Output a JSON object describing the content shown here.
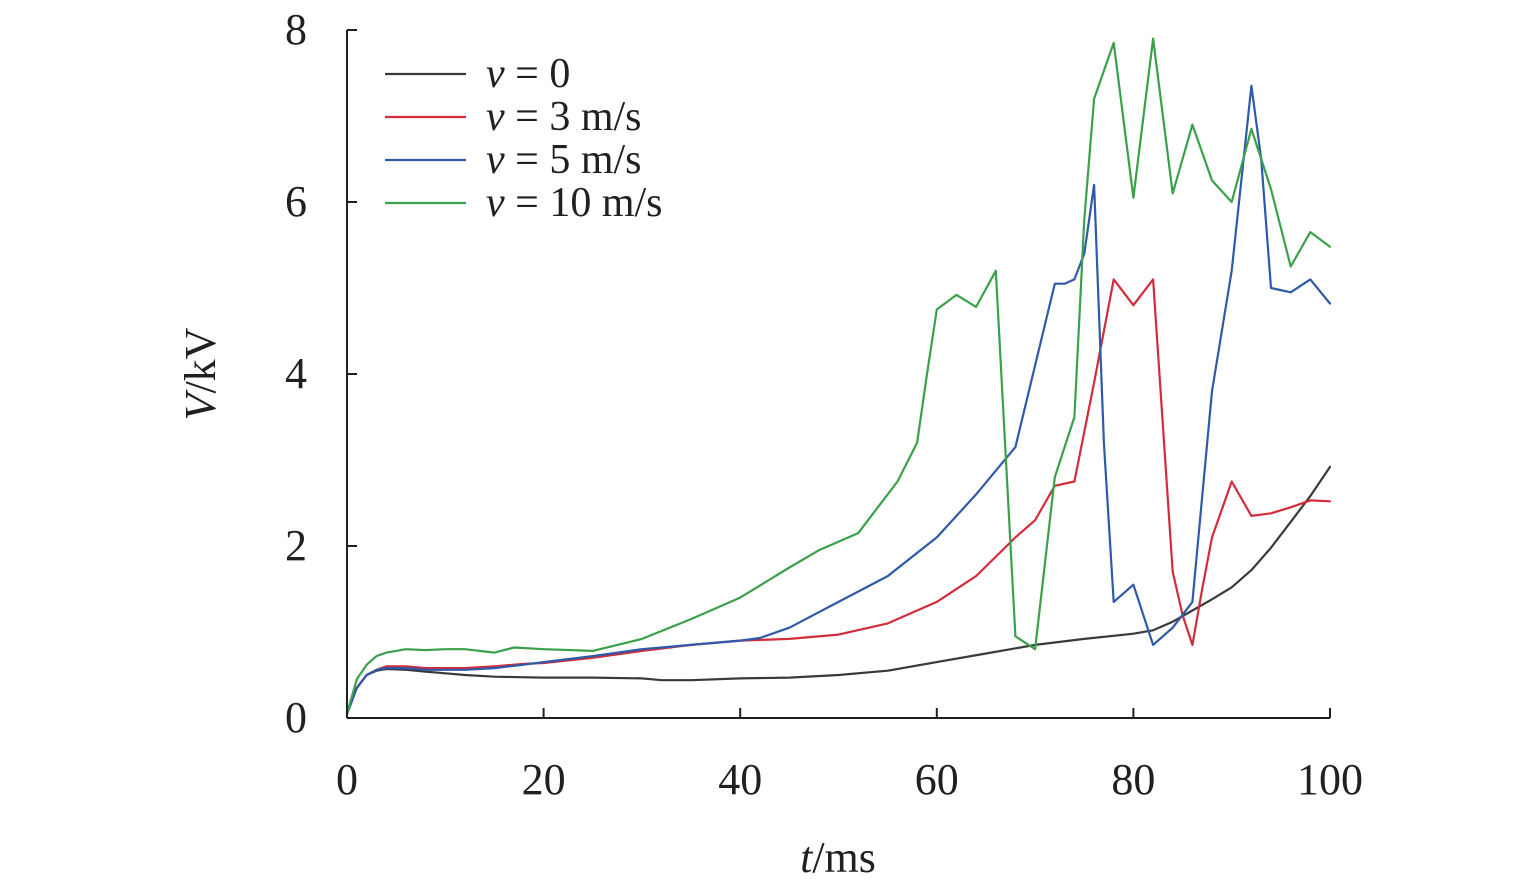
{
  "chart_data": {
    "type": "line",
    "title": "",
    "xlabel": {
      "var": "t",
      "unit": "/ms"
    },
    "ylabel": {
      "var": "V",
      "unit": "/kV"
    },
    "xlim": [
      0,
      100
    ],
    "ylim": [
      0,
      8
    ],
    "xticks": [
      "0",
      "20",
      "40",
      "60",
      "80",
      "100"
    ],
    "yticks": [
      "0",
      "2",
      "4",
      "6",
      "8"
    ],
    "grid": false,
    "legend_position": "top-left",
    "series": [
      {
        "name": "v = 0",
        "legend": {
          "var": "v",
          "rest": " = 0"
        },
        "color": "#3a3a3a",
        "x": [
          0,
          1,
          2,
          3,
          4,
          6,
          8,
          10,
          12,
          15,
          20,
          25,
          30,
          32,
          35,
          40,
          45,
          50,
          55,
          60,
          65,
          70,
          75,
          80,
          82,
          84,
          86,
          88,
          90,
          92,
          94,
          96,
          98,
          100
        ],
        "y": [
          0.05,
          0.35,
          0.5,
          0.55,
          0.57,
          0.56,
          0.54,
          0.52,
          0.5,
          0.48,
          0.47,
          0.47,
          0.46,
          0.44,
          0.44,
          0.46,
          0.47,
          0.5,
          0.55,
          0.65,
          0.75,
          0.85,
          0.92,
          0.98,
          1.02,
          1.12,
          1.25,
          1.38,
          1.52,
          1.72,
          1.98,
          2.28,
          2.58,
          2.92
        ]
      },
      {
        "name": "v = 3 m/s",
        "legend": {
          "var": "v",
          "rest": " = 3 m/s"
        },
        "color": "#d22c3c",
        "x": [
          0,
          1,
          2,
          3,
          4,
          6,
          8,
          10,
          12,
          15,
          18,
          20,
          25,
          30,
          35,
          40,
          45,
          50,
          55,
          60,
          64,
          68,
          70,
          72,
          74,
          76,
          78,
          80,
          82,
          84,
          85,
          86,
          87,
          88,
          90,
          92,
          94,
          96,
          98,
          100
        ],
        "y": [
          0.05,
          0.35,
          0.5,
          0.56,
          0.6,
          0.6,
          0.58,
          0.58,
          0.58,
          0.6,
          0.63,
          0.64,
          0.7,
          0.78,
          0.85,
          0.9,
          0.92,
          0.97,
          1.1,
          1.35,
          1.65,
          2.1,
          2.3,
          2.7,
          2.75,
          3.9,
          5.1,
          4.8,
          5.1,
          1.7,
          1.2,
          0.85,
          1.5,
          2.1,
          2.75,
          2.35,
          2.38,
          2.45,
          2.53,
          2.52
        ]
      },
      {
        "name": "v = 5 m/s",
        "legend": {
          "var": "v",
          "rest": " = 5 m/s"
        },
        "color": "#2e5aa8",
        "x": [
          0,
          1,
          2,
          3,
          4,
          6,
          8,
          10,
          12,
          15,
          18,
          20,
          25,
          30,
          35,
          40,
          42,
          45,
          50,
          55,
          60,
          64,
          68,
          70,
          72,
          73,
          74,
          75,
          76,
          77,
          78,
          80,
          82,
          84,
          86,
          88,
          90,
          92,
          93,
          94,
          96,
          98,
          100
        ],
        "y": [
          0.05,
          0.35,
          0.5,
          0.56,
          0.58,
          0.58,
          0.56,
          0.56,
          0.56,
          0.58,
          0.62,
          0.65,
          0.72,
          0.8,
          0.85,
          0.9,
          0.93,
          1.05,
          1.35,
          1.65,
          2.1,
          2.6,
          3.15,
          4.1,
          5.05,
          5.05,
          5.1,
          5.4,
          6.2,
          3.2,
          1.35,
          1.55,
          0.85,
          1.05,
          1.35,
          3.8,
          5.2,
          7.35,
          6.5,
          5.0,
          4.95,
          5.1,
          4.82
        ]
      },
      {
        "name": "v = 10 m/s",
        "legend": {
          "var": "v",
          "rest": " = 10 m/s"
        },
        "color": "#3aa04a",
        "x": [
          0,
          1,
          2,
          3,
          4,
          6,
          8,
          10,
          12,
          15,
          17,
          20,
          25,
          30,
          35,
          40,
          45,
          48,
          52,
          56,
          58,
          59,
          60,
          62,
          64,
          66,
          68,
          70,
          72,
          74,
          75,
          76,
          78,
          80,
          82,
          84,
          86,
          88,
          90,
          92,
          94,
          96,
          98,
          100
        ],
        "y": [
          0.05,
          0.45,
          0.62,
          0.72,
          0.76,
          0.8,
          0.79,
          0.8,
          0.8,
          0.76,
          0.82,
          0.8,
          0.78,
          0.92,
          1.15,
          1.4,
          1.75,
          1.95,
          2.15,
          2.75,
          3.2,
          4.0,
          4.75,
          4.92,
          4.78,
          5.2,
          0.95,
          0.8,
          2.8,
          3.5,
          5.8,
          7.2,
          7.85,
          6.05,
          7.9,
          6.1,
          6.9,
          6.25,
          6.0,
          6.85,
          6.15,
          5.25,
          5.65,
          5.48
        ]
      }
    ]
  }
}
